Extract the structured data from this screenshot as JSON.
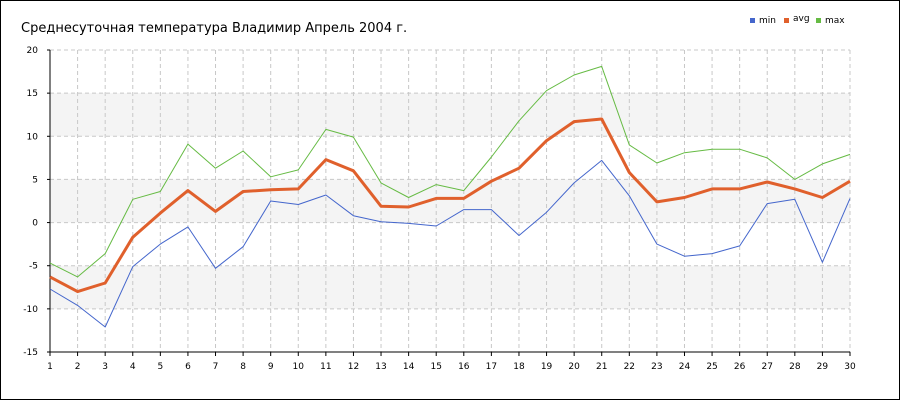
{
  "chart_data": {
    "type": "line",
    "title": "Среднесуточная температура Владимир  Апрель 2004 г.",
    "xlabel": "",
    "ylabel": "",
    "x": [
      1,
      2,
      3,
      4,
      5,
      6,
      7,
      8,
      9,
      10,
      11,
      12,
      13,
      14,
      15,
      16,
      17,
      18,
      19,
      20,
      21,
      22,
      23,
      24,
      25,
      26,
      27,
      28,
      29,
      30
    ],
    "xlim": [
      1,
      30
    ],
    "ylim": [
      -15,
      20
    ],
    "yticks": [
      20,
      15,
      10,
      5,
      0,
      -5,
      -10,
      -15
    ],
    "grid": true,
    "legend_position": "top-right",
    "series": [
      {
        "name": "min",
        "color": "#4466cc",
        "values": [
          -7.7,
          -9.6,
          -12.1,
          -5.1,
          -2.5,
          -0.5,
          -5.3,
          -2.8,
          2.5,
          2.1,
          3.2,
          0.8,
          0.1,
          -0.1,
          -0.4,
          1.5,
          1.5,
          -1.5,
          1.2,
          4.6,
          7.2,
          3.1,
          -2.5,
          -3.9,
          -3.6,
          -2.7,
          2.2,
          2.7,
          -4.6,
          2.8
        ]
      },
      {
        "name": "avg",
        "color": "#e0602c",
        "values": [
          -6.3,
          -8.0,
          -7.0,
          -1.7,
          1.1,
          3.7,
          1.3,
          3.6,
          3.8,
          3.9,
          7.3,
          6.0,
          1.9,
          1.8,
          2.8,
          2.8,
          4.8,
          6.3,
          9.5,
          11.7,
          12.0,
          5.8,
          2.4,
          2.9,
          3.9,
          3.9,
          4.7,
          3.9,
          2.9,
          4.8
        ]
      },
      {
        "name": "max",
        "color": "#66bb44",
        "values": [
          -4.7,
          -6.3,
          -3.6,
          2.7,
          3.6,
          9.1,
          6.3,
          8.3,
          5.3,
          6.1,
          10.8,
          9.9,
          4.6,
          2.9,
          4.4,
          3.7,
          7.6,
          11.8,
          15.3,
          17.1,
          18.1,
          9.0,
          6.9,
          8.1,
          8.5,
          8.5,
          7.5,
          5.0,
          6.8,
          7.9
        ]
      }
    ]
  }
}
